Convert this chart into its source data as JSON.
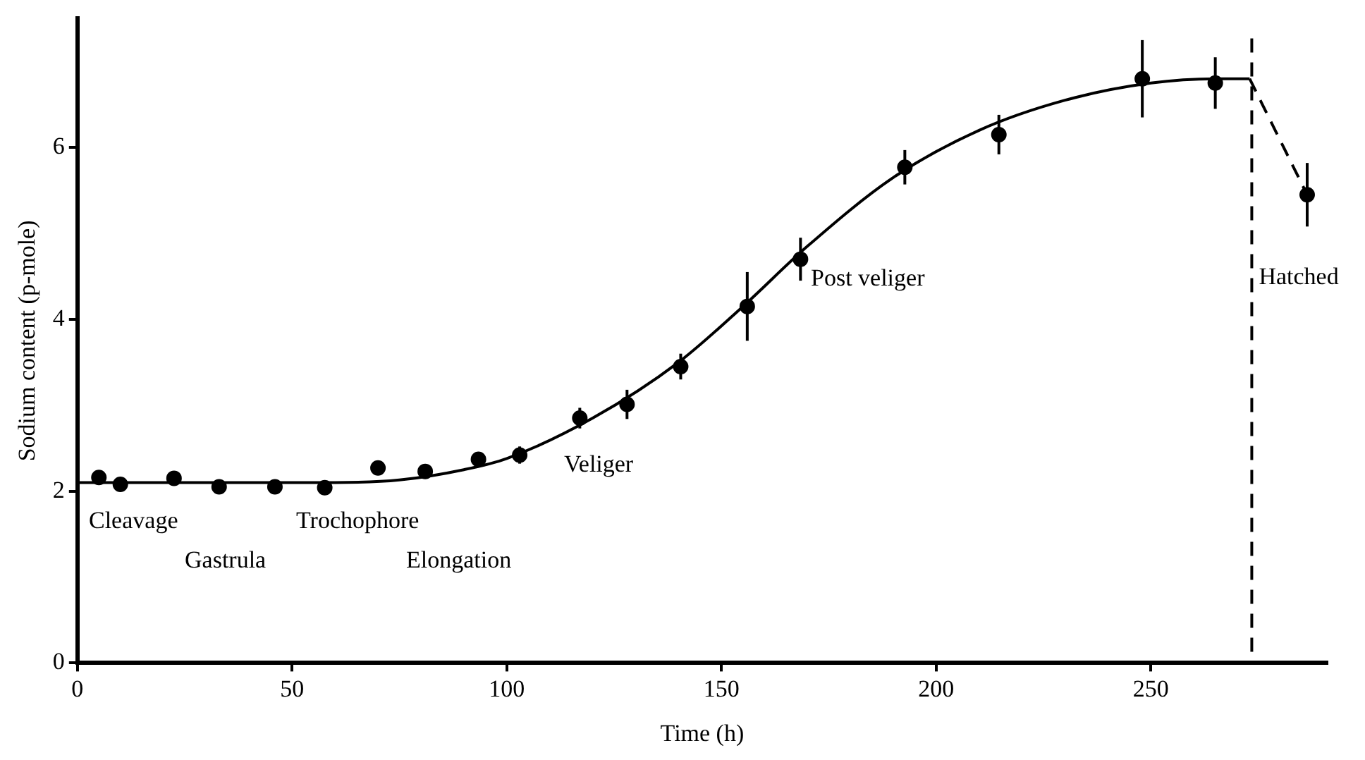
{
  "chart_data": {
    "type": "scatter",
    "xlabel": "Time (h)",
    "ylabel": "Sodium content (p-mole)",
    "xlim": [
      0,
      291
    ],
    "ylim": [
      0,
      7.5
    ],
    "xticks": [
      0,
      50,
      100,
      150,
      200,
      250
    ],
    "yticks": [
      0,
      2,
      4,
      6
    ],
    "grid": false,
    "legend": false,
    "series": [
      {
        "marker": "circle",
        "color": "#000000",
        "x": [
          5,
          10,
          22.5,
          33,
          46,
          57.6,
          70,
          81,
          93.4,
          103,
          117,
          128,
          140.5,
          156,
          168.4,
          192.7,
          214.6,
          248,
          265,
          286.4
        ],
        "values": [
          2.16,
          2.08,
          2.15,
          2.05,
          2.05,
          2.04,
          2.27,
          2.23,
          2.37,
          2.42,
          2.85,
          3.01,
          3.45,
          4.15,
          4.7,
          5.77,
          6.15,
          6.8,
          6.75,
          5.45
        ],
        "errors": [
          0.08,
          0.08,
          0.08,
          null,
          0.06,
          0.08,
          null,
          null,
          null,
          0.1,
          0.12,
          0.17,
          0.15,
          0.4,
          0.25,
          0.2,
          0.23,
          0.45,
          0.3,
          0.37
        ]
      },
      {
        "type": "line",
        "marker": "none",
        "color": "#000000",
        "line_style": "solid",
        "x": [
          0,
          60,
          75,
          90,
          100,
          120,
          140,
          155,
          170,
          190,
          210,
          230,
          250,
          265,
          273
        ],
        "values": [
          2.1,
          2.1,
          2.13,
          2.25,
          2.38,
          2.85,
          3.5,
          4.15,
          4.85,
          5.65,
          6.2,
          6.55,
          6.75,
          6.8,
          6.8
        ]
      },
      {
        "type": "line",
        "marker": "none",
        "color": "#000000",
        "line_style": "dashed",
        "x": [
          273,
          286.4
        ],
        "values": [
          6.8,
          5.45
        ]
      }
    ],
    "ref_lines": [
      {
        "axis": "x",
        "value": 273.5,
        "label": "Hatched",
        "line_style": "dashed",
        "color": "#000000"
      }
    ],
    "annotations": [
      "Cleavage",
      "Gastrula",
      "Trochophore",
      "Elongation",
      "Veliger",
      "Post veliger"
    ]
  }
}
